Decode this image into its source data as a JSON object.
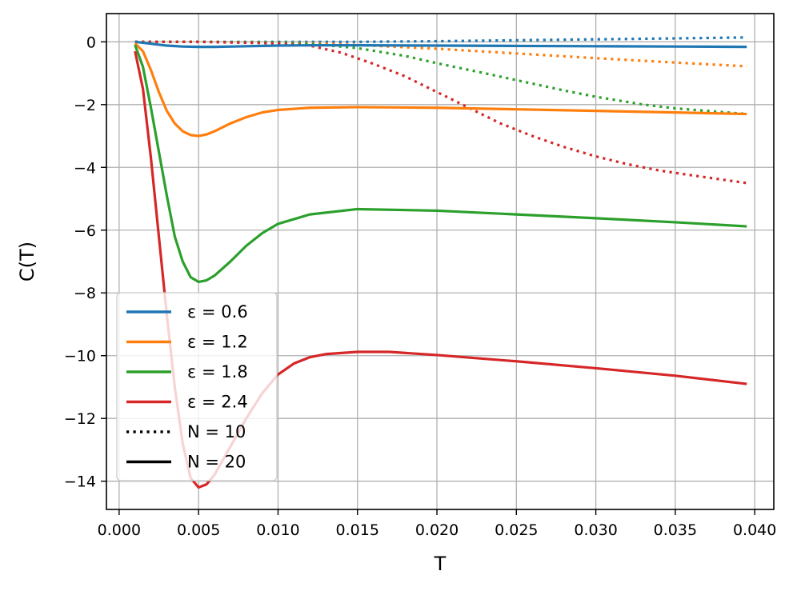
{
  "chart_data": {
    "type": "line",
    "title": "",
    "xlabel": "T",
    "ylabel": "C(T)",
    "xlim": [
      -0.0008,
      0.0412
    ],
    "ylim": [
      -14.9,
      0.9
    ],
    "xticks": [
      0.0,
      0.005,
      0.01,
      0.015,
      0.02,
      0.025,
      0.03,
      0.035,
      0.04
    ],
    "xtick_labels": [
      "0.000",
      "0.005",
      "0.010",
      "0.015",
      "0.020",
      "0.025",
      "0.030",
      "0.035",
      "0.040"
    ],
    "yticks": [
      0,
      -2,
      -4,
      -6,
      -8,
      -10,
      -12,
      -14
    ],
    "ytick_labels": [
      "0",
      "−2",
      "−4",
      "−6",
      "−8",
      "−10",
      "−12",
      "−14"
    ],
    "grid": true,
    "legend_position": "lower-left",
    "legend": [
      {
        "label": "ε = 0.6",
        "color": "#1f77b4",
        "style": "solid"
      },
      {
        "label": "ε = 1.2",
        "color": "#ff7f0e",
        "style": "solid"
      },
      {
        "label": "ε = 1.8",
        "color": "#2ca02c",
        "style": "solid"
      },
      {
        "label": "ε = 2.4",
        "color": "#d62728",
        "style": "solid"
      },
      {
        "label": "N = 10",
        "color": "#000000",
        "style": "dotted"
      },
      {
        "label": "N = 20",
        "color": "#000000",
        "style": "solid"
      }
    ],
    "series": [
      {
        "epsilon": 0.6,
        "N": 20,
        "color": "#1f77b4",
        "style": "solid",
        "x": [
          0.001,
          0.002,
          0.003,
          0.004,
          0.005,
          0.006,
          0.008,
          0.01,
          0.012,
          0.015,
          0.02,
          0.025,
          0.03,
          0.035,
          0.0395
        ],
        "y": [
          0.0,
          -0.06,
          -0.12,
          -0.15,
          -0.16,
          -0.16,
          -0.14,
          -0.12,
          -0.11,
          -0.11,
          -0.12,
          -0.13,
          -0.14,
          -0.15,
          -0.16
        ]
      },
      {
        "epsilon": 1.2,
        "N": 20,
        "color": "#ff7f0e",
        "style": "solid",
        "x": [
          0.001,
          0.0015,
          0.002,
          0.0025,
          0.003,
          0.0035,
          0.004,
          0.0045,
          0.005,
          0.0055,
          0.006,
          0.007,
          0.008,
          0.009,
          0.01,
          0.012,
          0.015,
          0.02,
          0.025,
          0.03,
          0.035,
          0.0395
        ],
        "y": [
          -0.05,
          -0.3,
          -0.9,
          -1.6,
          -2.2,
          -2.6,
          -2.85,
          -2.97,
          -3.0,
          -2.95,
          -2.85,
          -2.6,
          -2.4,
          -2.25,
          -2.17,
          -2.1,
          -2.08,
          -2.1,
          -2.15,
          -2.2,
          -2.25,
          -2.3
        ]
      },
      {
        "epsilon": 1.8,
        "N": 20,
        "color": "#2ca02c",
        "style": "solid",
        "x": [
          0.001,
          0.0015,
          0.002,
          0.0025,
          0.003,
          0.0035,
          0.004,
          0.0045,
          0.005,
          0.0055,
          0.006,
          0.007,
          0.008,
          0.009,
          0.01,
          0.012,
          0.015,
          0.02,
          0.025,
          0.03,
          0.035,
          0.0395
        ],
        "y": [
          -0.1,
          -0.8,
          -2.1,
          -3.5,
          -4.9,
          -6.2,
          -7.0,
          -7.5,
          -7.65,
          -7.6,
          -7.45,
          -7.0,
          -6.5,
          -6.1,
          -5.8,
          -5.5,
          -5.33,
          -5.38,
          -5.5,
          -5.62,
          -5.75,
          -5.88
        ]
      },
      {
        "epsilon": 2.4,
        "N": 20,
        "color": "#d62728",
        "style": "solid",
        "x": [
          0.001,
          0.0015,
          0.002,
          0.0025,
          0.003,
          0.0035,
          0.004,
          0.0045,
          0.005,
          0.0055,
          0.006,
          0.007,
          0.008,
          0.009,
          0.01,
          0.011,
          0.012,
          0.013,
          0.015,
          0.017,
          0.02,
          0.025,
          0.03,
          0.035,
          0.0395
        ],
        "y": [
          -0.3,
          -1.5,
          -3.7,
          -6.2,
          -8.7,
          -11.0,
          -12.8,
          -13.9,
          -14.2,
          -14.1,
          -13.8,
          -12.9,
          -12.0,
          -11.2,
          -10.6,
          -10.25,
          -10.05,
          -9.95,
          -9.88,
          -9.88,
          -9.98,
          -10.18,
          -10.4,
          -10.64,
          -10.9
        ]
      },
      {
        "epsilon": 0.6,
        "N": 10,
        "color": "#1f77b4",
        "style": "dotted",
        "x": [
          0.001,
          0.005,
          0.01,
          0.015,
          0.02,
          0.025,
          0.03,
          0.035,
          0.0395
        ],
        "y": [
          0.0,
          0.0,
          0.0,
          0.0,
          0.02,
          0.05,
          0.08,
          0.11,
          0.14
        ]
      },
      {
        "epsilon": 1.2,
        "N": 10,
        "color": "#ff7f0e",
        "style": "dotted",
        "x": [
          0.001,
          0.005,
          0.01,
          0.012,
          0.015,
          0.02,
          0.025,
          0.03,
          0.035,
          0.0395
        ],
        "y": [
          0.0,
          0.0,
          -0.02,
          -0.04,
          -0.1,
          -0.22,
          -0.37,
          -0.52,
          -0.66,
          -0.78
        ]
      },
      {
        "epsilon": 1.8,
        "N": 10,
        "color": "#2ca02c",
        "style": "dotted",
        "x": [
          0.001,
          0.005,
          0.01,
          0.012,
          0.015,
          0.018,
          0.02,
          0.023,
          0.025,
          0.028,
          0.03,
          0.033,
          0.035,
          0.0395
        ],
        "y": [
          0.0,
          0.0,
          -0.02,
          -0.06,
          -0.2,
          -0.45,
          -0.68,
          -1.0,
          -1.22,
          -1.55,
          -1.75,
          -2.0,
          -2.12,
          -2.3
        ]
      },
      {
        "epsilon": 2.4,
        "N": 10,
        "color": "#d62728",
        "style": "dotted",
        "x": [
          0.001,
          0.005,
          0.01,
          0.012,
          0.014,
          0.016,
          0.018,
          0.02,
          0.022,
          0.024,
          0.026,
          0.028,
          0.03,
          0.032,
          0.034,
          0.036,
          0.0395
        ],
        "y": [
          0.0,
          0.0,
          -0.05,
          -0.12,
          -0.35,
          -0.7,
          -1.1,
          -1.6,
          -2.1,
          -2.6,
          -3.0,
          -3.35,
          -3.65,
          -3.9,
          -4.1,
          -4.25,
          -4.5
        ]
      }
    ]
  }
}
